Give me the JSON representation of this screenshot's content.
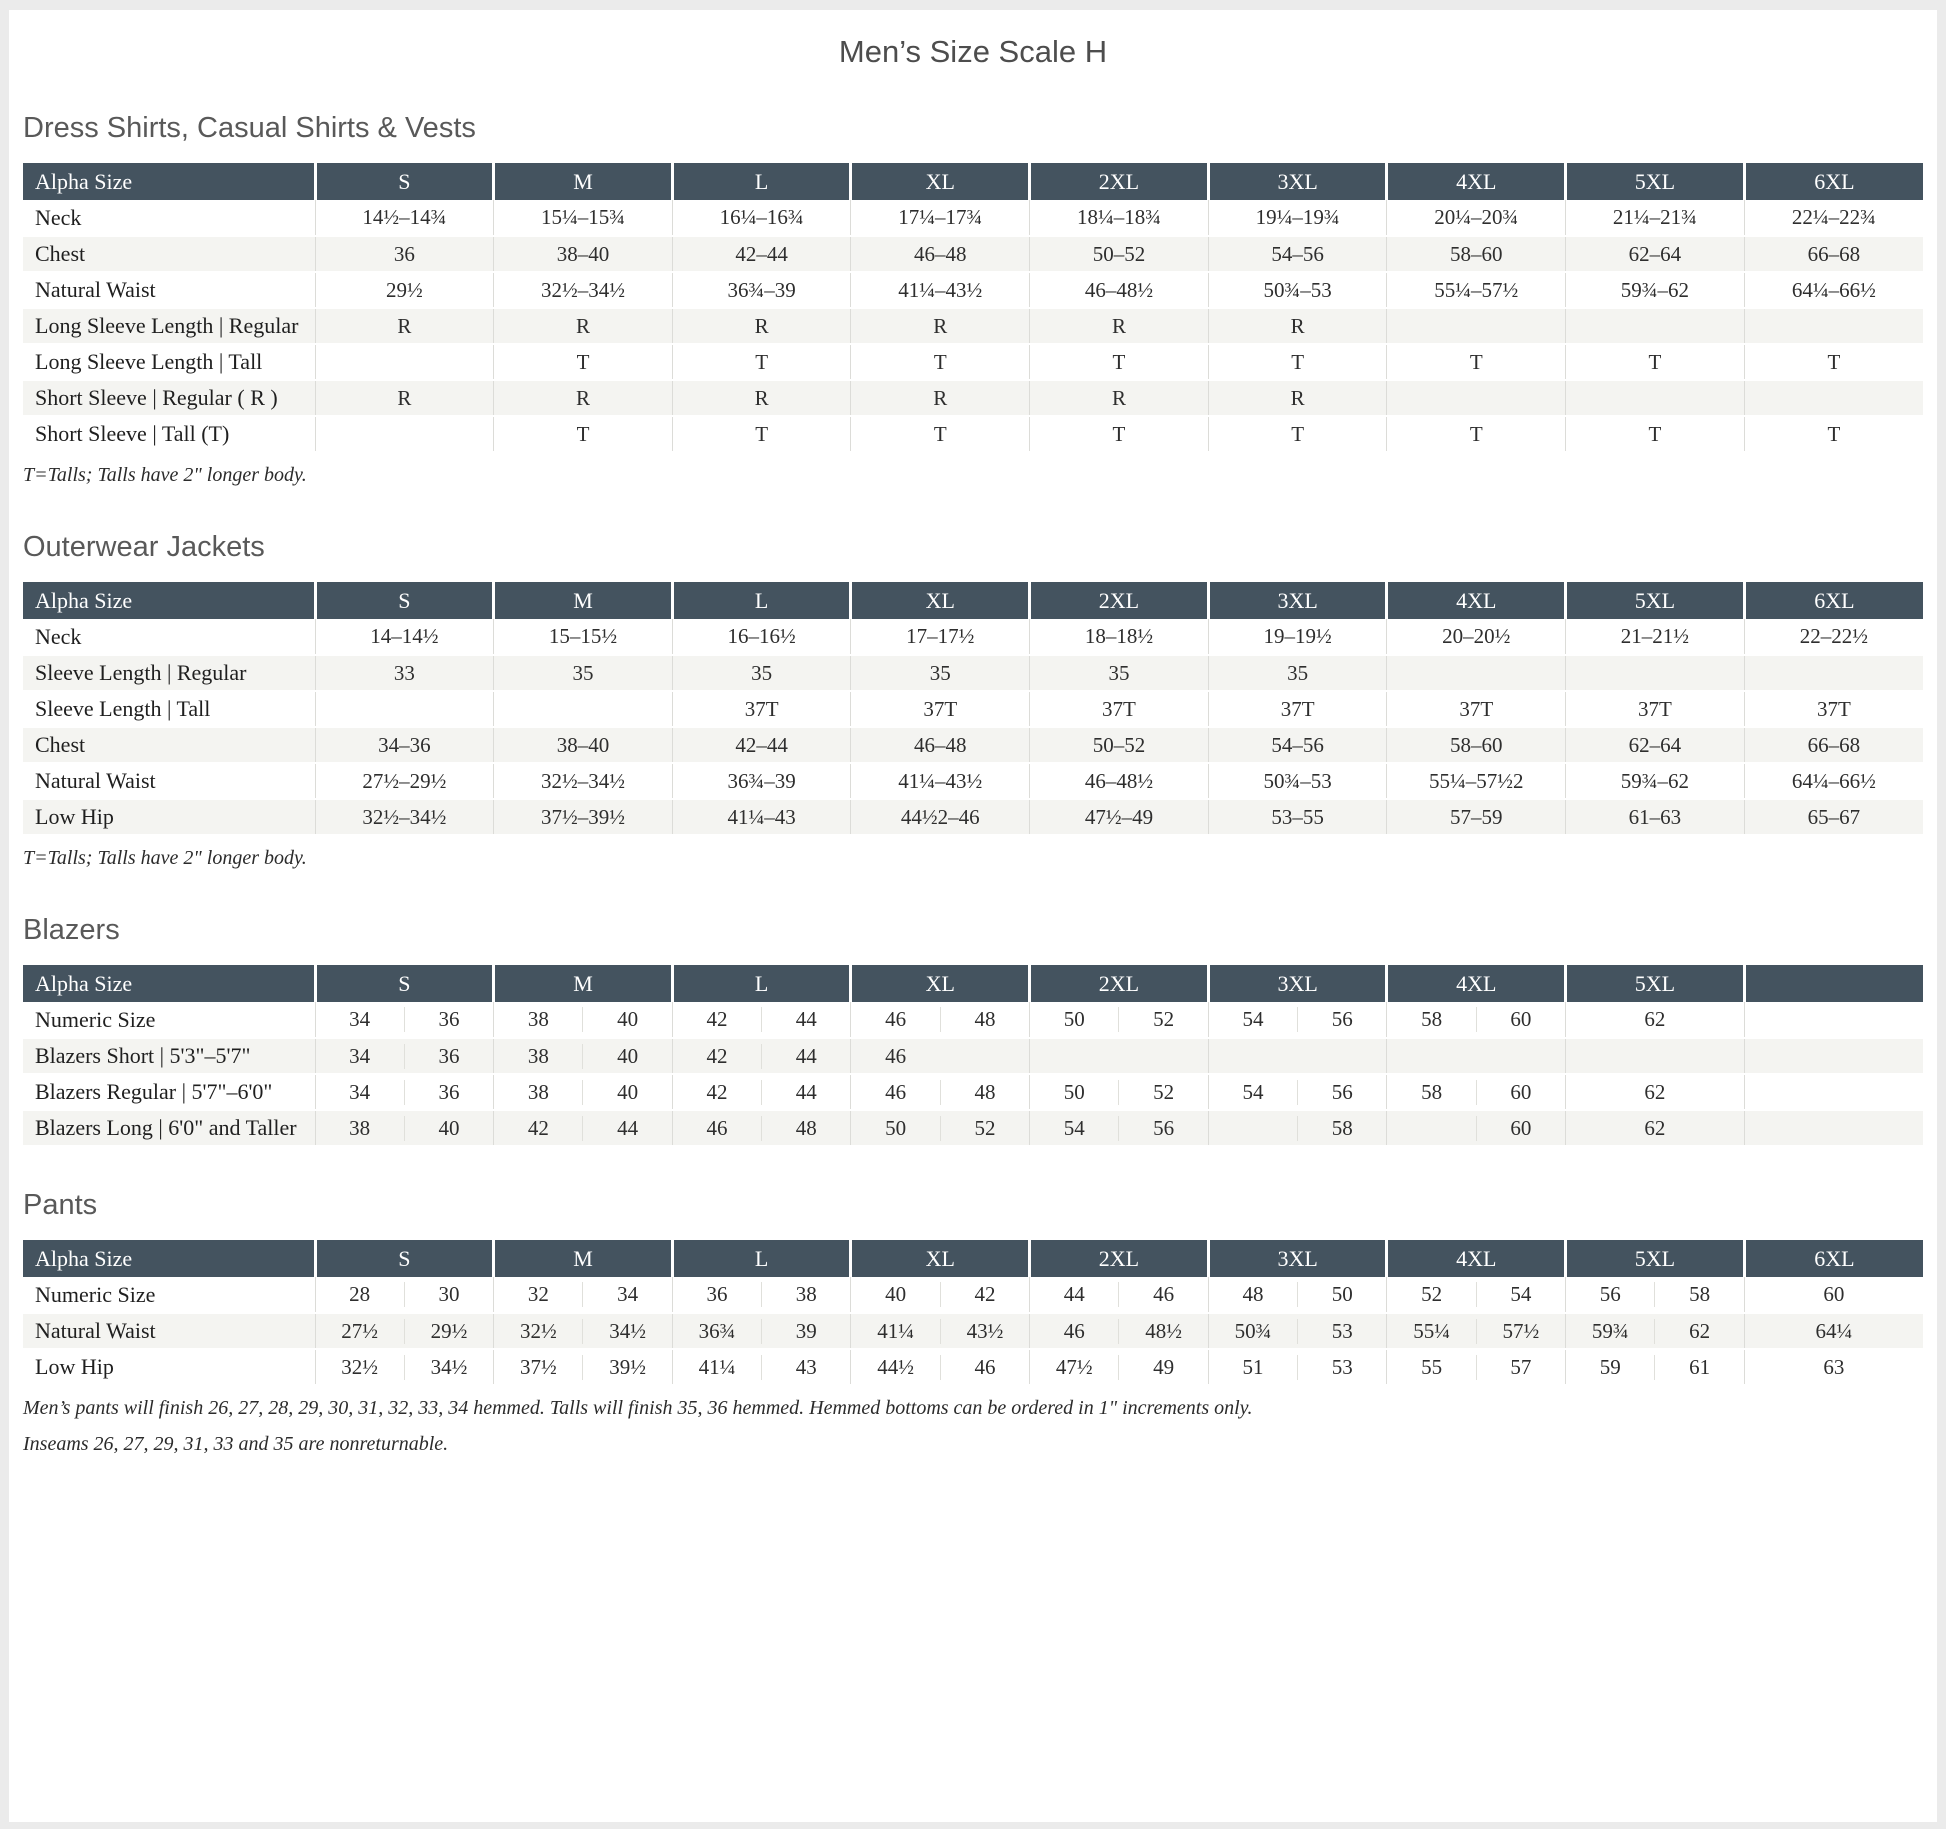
{
  "page_title": "Men’s Size Scale H",
  "colors": {
    "header_bg": "#44535f",
    "row_alt_bg": "#f4f4f1",
    "frame": "#ebebeb",
    "title_text": "#4d4d4d",
    "heading_text": "#595959"
  },
  "sections": [
    {
      "id": "dress-shirts",
      "heading": "Dress Shirts, Casual Shirts & Vests",
      "row_type": "simple",
      "columns": [
        "Alpha Size",
        "S",
        "M",
        "L",
        "XL",
        "2XL",
        "3XL",
        "4XL",
        "5XL",
        "6XL"
      ],
      "rows": [
        {
          "label": "Neck",
          "cells": [
            "14½–14¾",
            "15¼–15¾",
            "16¼–16¾",
            "17¼–17¾",
            "18¼–18¾",
            "19¼–19¾",
            "20¼–20¾",
            "21¼–21¾",
            "22¼–22¾"
          ]
        },
        {
          "label": "Chest",
          "cells": [
            "36",
            "38–40",
            "42–44",
            "46–48",
            "50–52",
            "54–56",
            "58–60",
            "62–64",
            "66–68"
          ]
        },
        {
          "label": "Natural Waist",
          "cells": [
            "29½",
            "32½–34½",
            "36¾–39",
            "41¼–43½",
            "46–48½",
            "50¾–53",
            "55¼–57½",
            "59¾–62",
            "64¼–66½"
          ]
        },
        {
          "label": "Long Sleeve Length | Regular",
          "cells": [
            "R",
            "R",
            "R",
            "R",
            "R",
            "R",
            "",
            "",
            ""
          ]
        },
        {
          "label": "Long Sleeve Length | Tall",
          "cells": [
            "",
            "T",
            "T",
            "T",
            "T",
            "T",
            "T",
            "T",
            "T"
          ]
        },
        {
          "label": "Short Sleeve | Regular ( R )",
          "cells": [
            "R",
            "R",
            "R",
            "R",
            "R",
            "R",
            "",
            "",
            ""
          ]
        },
        {
          "label": "Short Sleeve | Tall (T)",
          "cells": [
            "",
            "T",
            "T",
            "T",
            "T",
            "T",
            "T",
            "T",
            "T"
          ]
        }
      ],
      "notes": [
        "T=Talls; Talls have 2\" longer body."
      ]
    },
    {
      "id": "outerwear-jackets",
      "heading": "Outerwear Jackets",
      "row_type": "simple",
      "columns": [
        "Alpha Size",
        "S",
        "M",
        "L",
        "XL",
        "2XL",
        "3XL",
        "4XL",
        "5XL",
        "6XL"
      ],
      "rows": [
        {
          "label": "Neck",
          "cells": [
            "14–14½",
            "15–15½",
            "16–16½",
            "17–17½",
            "18–18½",
            "19–19½",
            "20–20½",
            "21–21½",
            "22–22½"
          ]
        },
        {
          "label": "Sleeve Length | Regular",
          "cells": [
            "33",
            "35",
            "35",
            "35",
            "35",
            "35",
            "",
            "",
            ""
          ]
        },
        {
          "label": "Sleeve Length | Tall",
          "cells": [
            "",
            "",
            "37T",
            "37T",
            "37T",
            "37T",
            "37T",
            "37T",
            "37T"
          ]
        },
        {
          "label": "Chest",
          "cells": [
            "34–36",
            "38–40",
            "42–44",
            "46–48",
            "50–52",
            "54–56",
            "58–60",
            "62–64",
            "66–68"
          ]
        },
        {
          "label": "Natural Waist",
          "cells": [
            "27½–29½",
            "32½–34½",
            "36¾–39",
            "41¼–43½",
            "46–48½",
            "50¾–53",
            "55¼–57½2",
            "59¾–62",
            "64¼–66½"
          ]
        },
        {
          "label": "Low Hip",
          "cells": [
            "32½–34½",
            "37½–39½",
            "41¼–43",
            "44½2–46",
            "47½–49",
            "53–55",
            "57–59",
            "61–63",
            "65–67"
          ]
        }
      ],
      "notes": [
        "T=Talls; Talls have 2\" longer body."
      ]
    },
    {
      "id": "blazers",
      "heading": "Blazers",
      "row_type": "split",
      "columns": [
        "Alpha Size",
        "S",
        "M",
        "L",
        "XL",
        "2XL",
        "3XL",
        "4XL",
        "5XL",
        ""
      ],
      "rows": [
        {
          "label": "Numeric Size",
          "cells": [
            [
              "34",
              "36"
            ],
            [
              "38",
              "40"
            ],
            [
              "42",
              "44"
            ],
            [
              "46",
              "48"
            ],
            [
              "50",
              "52"
            ],
            [
              "54",
              "56"
            ],
            [
              "58",
              "60"
            ],
            "62",
            ""
          ]
        },
        {
          "label": "Blazers Short | 5'3\"–5'7\"",
          "cells": [
            [
              "34",
              "36"
            ],
            [
              "38",
              "40"
            ],
            [
              "42",
              "44"
            ],
            [
              "46",
              ""
            ],
            "",
            "",
            "",
            "",
            ""
          ]
        },
        {
          "label": "Blazers Regular | 5'7\"–6'0\"",
          "cells": [
            [
              "34",
              "36"
            ],
            [
              "38",
              "40"
            ],
            [
              "42",
              "44"
            ],
            [
              "46",
              "48"
            ],
            [
              "50",
              "52"
            ],
            [
              "54",
              "56"
            ],
            [
              "58",
              "60"
            ],
            "62",
            ""
          ]
        },
        {
          "label": "Blazers Long | 6'0\" and Taller",
          "cells": [
            [
              "38",
              "40"
            ],
            [
              "42",
              "44"
            ],
            [
              "46",
              "48"
            ],
            [
              "50",
              "52"
            ],
            [
              "54",
              "56"
            ],
            [
              "",
              "58"
            ],
            [
              "",
              "60"
            ],
            "62",
            ""
          ]
        }
      ],
      "notes": []
    },
    {
      "id": "pants",
      "heading": "Pants",
      "row_type": "split",
      "columns": [
        "Alpha Size",
        "S",
        "M",
        "L",
        "XL",
        "2XL",
        "3XL",
        "4XL",
        "5XL",
        "6XL"
      ],
      "rows": [
        {
          "label": "Numeric Size",
          "cells": [
            [
              "28",
              "30"
            ],
            [
              "32",
              "34"
            ],
            [
              "36",
              "38"
            ],
            [
              "40",
              "42"
            ],
            [
              "44",
              "46"
            ],
            [
              "48",
              "50"
            ],
            [
              "52",
              "54"
            ],
            [
              "56",
              "58"
            ],
            "60"
          ]
        },
        {
          "label": "Natural Waist",
          "cells": [
            [
              "27½",
              "29½"
            ],
            [
              "32½",
              "34½"
            ],
            [
              "36¾",
              "39"
            ],
            [
              "41¼",
              "43½"
            ],
            [
              "46",
              "48½"
            ],
            [
              "50¾",
              "53"
            ],
            [
              "55¼",
              "57½"
            ],
            [
              "59¾",
              "62"
            ],
            "64¼"
          ]
        },
        {
          "label": "Low Hip",
          "cells": [
            [
              "32½",
              "34½"
            ],
            [
              "37½",
              "39½"
            ],
            [
              "41¼",
              "43"
            ],
            [
              "44½",
              "46"
            ],
            [
              "47½",
              "49"
            ],
            [
              "51",
              "53"
            ],
            [
              "55",
              "57"
            ],
            [
              "59",
              "61"
            ],
            "63"
          ]
        }
      ],
      "notes": [
        "Men’s pants will finish 26, 27, 28, 29, 30, 31, 32, 33, 34 hemmed. Talls will finish 35, 36 hemmed. Hemmed bottoms can be ordered in 1\" increments only.",
        "Inseams 26, 27, 29, 31, 33 and 35 are nonreturnable."
      ]
    }
  ]
}
